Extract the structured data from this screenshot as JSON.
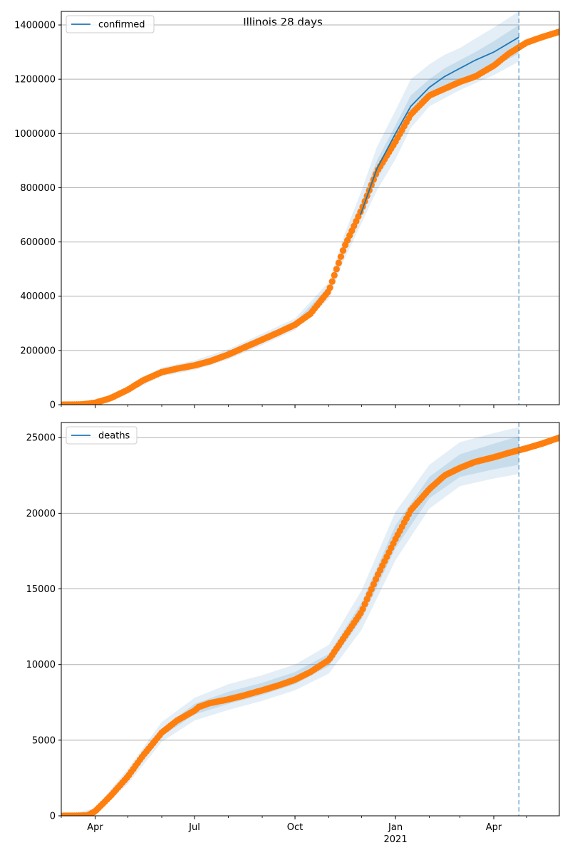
{
  "figure": {
    "title": "Illinois 28 days"
  },
  "colors": {
    "model": "#1f77b4",
    "observed": "#ff7f0e",
    "band": "#1f77b4",
    "grid": "#b0b0b0",
    "vline": "#1f77b4"
  },
  "chart_data": [
    {
      "type": "line",
      "title": "Illinois 28 days",
      "xlabel": "",
      "ylabel": "",
      "xlim": [
        "2020-03-01",
        "2021-05-31"
      ],
      "ylim": [
        0,
        1450000
      ],
      "yticks": [
        0,
        200000,
        400000,
        600000,
        800000,
        1000000,
        1200000,
        1400000
      ],
      "ytick_labels": [
        "0",
        "200000",
        "400000",
        "600000",
        "800000",
        "1000000",
        "1200000",
        "1400000"
      ],
      "xticks": [
        "2020-04-01",
        "2020-07-01",
        "2020-10-01",
        "2021-01-01",
        "2021-04-01"
      ],
      "xtick_labels": [
        "Apr",
        "Jul",
        "Oct",
        "Jan",
        "Apr"
      ],
      "xtick_year_label": "2021",
      "grid": "horizontal",
      "legend": {
        "position": "top-left",
        "entries": [
          "confirmed"
        ]
      },
      "forecast_start": "2021-04-24",
      "series": [
        {
          "name": "confirmed",
          "kind": "model_line",
          "points": [
            [
              "2020-11-30",
              700000
            ],
            [
              "2020-12-15",
              870000
            ],
            [
              "2021-01-01",
              1000000
            ],
            [
              "2021-01-15",
              1100000
            ],
            [
              "2021-02-01",
              1170000
            ],
            [
              "2021-02-15",
              1210000
            ],
            [
              "2021-03-01",
              1240000
            ],
            [
              "2021-03-15",
              1270000
            ],
            [
              "2021-04-01",
              1300000
            ],
            [
              "2021-04-24",
              1355000
            ]
          ]
        },
        {
          "name": "observed",
          "kind": "markers",
          "points": [
            [
              "2020-03-01",
              0
            ],
            [
              "2020-03-20",
              1000
            ],
            [
              "2020-04-01",
              7000
            ],
            [
              "2020-04-15",
              24000
            ],
            [
              "2020-05-01",
              55000
            ],
            [
              "2020-05-15",
              90000
            ],
            [
              "2020-06-01",
              120000
            ],
            [
              "2020-06-15",
              133000
            ],
            [
              "2020-07-01",
              145000
            ],
            [
              "2020-07-15",
              160000
            ],
            [
              "2020-08-01",
              185000
            ],
            [
              "2020-08-15",
              210000
            ],
            [
              "2020-09-01",
              240000
            ],
            [
              "2020-09-15",
              265000
            ],
            [
              "2020-10-01",
              295000
            ],
            [
              "2020-10-15",
              335000
            ],
            [
              "2020-11-01",
              420000
            ],
            [
              "2020-11-15",
              580000
            ],
            [
              "2020-12-01",
              720000
            ],
            [
              "2020-12-15",
              860000
            ],
            [
              "2021-01-01",
              970000
            ],
            [
              "2021-01-15",
              1070000
            ],
            [
              "2021-02-01",
              1140000
            ],
            [
              "2021-02-15",
              1165000
            ],
            [
              "2021-03-01",
              1190000
            ],
            [
              "2021-03-15",
              1210000
            ],
            [
              "2021-04-01",
              1250000
            ],
            [
              "2021-04-15",
              1295000
            ],
            [
              "2021-05-01",
              1335000
            ],
            [
              "2021-05-15",
              1355000
            ],
            [
              "2021-05-31",
              1375000
            ]
          ]
        }
      ],
      "bands": {
        "inner": [
          [
            "2020-03-01",
            0,
            0
          ],
          [
            "2020-04-01",
            5000,
            9000
          ],
          [
            "2020-05-01",
            50000,
            60000
          ],
          [
            "2020-06-01",
            112000,
            128000
          ],
          [
            "2020-07-01",
            136000,
            154000
          ],
          [
            "2020-08-01",
            175000,
            195000
          ],
          [
            "2020-09-01",
            230000,
            250000
          ],
          [
            "2020-10-01",
            285000,
            305000
          ],
          [
            "2020-11-01",
            405000,
            435000
          ],
          [
            "2020-11-15",
            560000,
            600000
          ],
          [
            "2020-12-01",
            700000,
            750000
          ],
          [
            "2020-12-15",
            830000,
            900000
          ],
          [
            "2021-01-01",
            950000,
            1030000
          ],
          [
            "2021-01-15",
            1060000,
            1140000
          ],
          [
            "2021-02-01",
            1130000,
            1200000
          ],
          [
            "2021-02-15",
            1160000,
            1240000
          ],
          [
            "2021-03-01",
            1185000,
            1270000
          ],
          [
            "2021-03-15",
            1210000,
            1300000
          ],
          [
            "2021-04-01",
            1245000,
            1340000
          ],
          [
            "2021-04-24",
            1295000,
            1400000
          ]
        ],
        "outer": [
          [
            "2020-03-01",
            0,
            0
          ],
          [
            "2020-04-01",
            3000,
            12000
          ],
          [
            "2020-05-01",
            45000,
            67000
          ],
          [
            "2020-06-01",
            105000,
            137000
          ],
          [
            "2020-07-01",
            128000,
            163000
          ],
          [
            "2020-08-01",
            167000,
            205000
          ],
          [
            "2020-09-01",
            220000,
            262000
          ],
          [
            "2020-10-01",
            275000,
            318000
          ],
          [
            "2020-11-01",
            390000,
            452000
          ],
          [
            "2020-11-15",
            535000,
            625000
          ],
          [
            "2020-12-01",
            670000,
            790000
          ],
          [
            "2020-12-15",
            790000,
            950000
          ],
          [
            "2021-01-01",
            905000,
            1085000
          ],
          [
            "2021-01-15",
            1020000,
            1200000
          ],
          [
            "2021-02-01",
            1100000,
            1255000
          ],
          [
            "2021-02-15",
            1130000,
            1290000
          ],
          [
            "2021-03-01",
            1160000,
            1315000
          ],
          [
            "2021-03-15",
            1185000,
            1350000
          ],
          [
            "2021-04-01",
            1215000,
            1390000
          ],
          [
            "2021-04-24",
            1265000,
            1450000
          ]
        ]
      }
    },
    {
      "type": "line",
      "title": "",
      "xlabel": "",
      "ylabel": "",
      "xlim": [
        "2020-03-01",
        "2021-05-31"
      ],
      "ylim": [
        0,
        26000
      ],
      "yticks": [
        0,
        5000,
        10000,
        15000,
        20000,
        25000
      ],
      "ytick_labels": [
        "0",
        "5000",
        "10000",
        "15000",
        "20000",
        "25000"
      ],
      "xticks": [
        "2020-04-01",
        "2020-07-01",
        "2020-10-01",
        "2021-01-01",
        "2021-04-01"
      ],
      "xtick_labels": [
        "Apr",
        "Jul",
        "Oct",
        "Jan",
        "Apr"
      ],
      "xtick_year_label": "2021",
      "grid": "horizontal",
      "legend": {
        "position": "top-left",
        "entries": [
          "deaths"
        ]
      },
      "forecast_start": "2021-04-24",
      "series": [
        {
          "name": "deaths",
          "kind": "model_line",
          "points": []
        },
        {
          "name": "observed",
          "kind": "markers",
          "points": [
            [
              "2020-03-01",
              0
            ],
            [
              "2020-03-25",
              20
            ],
            [
              "2020-04-01",
              300
            ],
            [
              "2020-04-15",
              1300
            ],
            [
              "2020-05-01",
              2600
            ],
            [
              "2020-05-15",
              4000
            ],
            [
              "2020-06-01",
              5500
            ],
            [
              "2020-06-15",
              6300
            ],
            [
              "2020-07-01",
              6950
            ],
            [
              "2020-07-05",
              7200
            ],
            [
              "2020-07-15",
              7450
            ],
            [
              "2020-08-01",
              7700
            ],
            [
              "2020-08-15",
              7950
            ],
            [
              "2020-09-01",
              8300
            ],
            [
              "2020-09-15",
              8600
            ],
            [
              "2020-10-01",
              9000
            ],
            [
              "2020-10-15",
              9500
            ],
            [
              "2020-11-01",
              10300
            ],
            [
              "2020-11-15",
              11800
            ],
            [
              "2020-12-01",
              13500
            ],
            [
              "2020-12-15",
              15800
            ],
            [
              "2021-01-01",
              18300
            ],
            [
              "2021-01-15",
              20200
            ],
            [
              "2021-02-01",
              21600
            ],
            [
              "2021-02-15",
              22500
            ],
            [
              "2021-03-01",
              23000
            ],
            [
              "2021-03-15",
              23400
            ],
            [
              "2021-04-01",
              23700
            ],
            [
              "2021-04-15",
              24000
            ],
            [
              "2021-05-01",
              24300
            ],
            [
              "2021-05-15",
              24600
            ],
            [
              "2021-05-31",
              25000
            ]
          ]
        }
      ],
      "bands": {
        "inner": [
          [
            "2020-03-01",
            0,
            0
          ],
          [
            "2020-04-01",
            250,
            350
          ],
          [
            "2020-05-01",
            2400,
            2800
          ],
          [
            "2020-06-01",
            5250,
            5750
          ],
          [
            "2020-07-01",
            6700,
            7400
          ],
          [
            "2020-08-01",
            7400,
            8200
          ],
          [
            "2020-09-01",
            8000,
            8800
          ],
          [
            "2020-10-01",
            8700,
            9500
          ],
          [
            "2020-11-01",
            9900,
            10700
          ],
          [
            "2020-12-01",
            13000,
            14100
          ],
          [
            "2021-01-01",
            17700,
            19200
          ],
          [
            "2021-02-01",
            21000,
            22400
          ],
          [
            "2021-03-01",
            22400,
            23900
          ],
          [
            "2021-04-01",
            22900,
            24600
          ],
          [
            "2021-04-24",
            23200,
            25100
          ]
        ],
        "outer": [
          [
            "2020-03-01",
            0,
            0
          ],
          [
            "2020-04-01",
            150,
            500
          ],
          [
            "2020-05-01",
            2100,
            3100
          ],
          [
            "2020-06-01",
            4900,
            6200
          ],
          [
            "2020-07-01",
            6300,
            7800
          ],
          [
            "2020-08-01",
            7000,
            8700
          ],
          [
            "2020-09-01",
            7600,
            9300
          ],
          [
            "2020-10-01",
            8300,
            10000
          ],
          [
            "2020-11-01",
            9400,
            11300
          ],
          [
            "2020-12-01",
            12300,
            14900
          ],
          [
            "2021-01-01",
            16900,
            20100
          ],
          [
            "2021-02-01",
            20300,
            23200
          ],
          [
            "2021-03-01",
            21800,
            24700
          ],
          [
            "2021-04-01",
            22300,
            25300
          ],
          [
            "2021-04-24",
            22600,
            25700
          ]
        ]
      }
    }
  ]
}
